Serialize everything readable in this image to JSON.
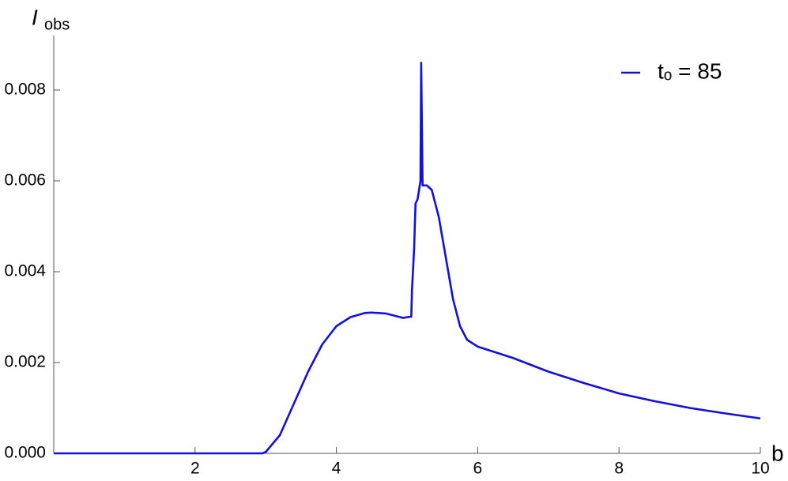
{
  "chart_data": {
    "type": "line",
    "ylabel": "I",
    "ylabel_sub": "obs",
    "xlabel": "b",
    "x": [
      0,
      1,
      2,
      2.95,
      3.0,
      3.2,
      3.4,
      3.6,
      3.8,
      4.0,
      4.2,
      4.4,
      4.5,
      4.7,
      4.9,
      4.95,
      5.0,
      5.06,
      5.07,
      5.1,
      5.12,
      5.15,
      5.19,
      5.2,
      5.22,
      5.28,
      5.35,
      5.45,
      5.55,
      5.65,
      5.75,
      5.85,
      6.0,
      6.5,
      7.0,
      7.5,
      8.0,
      8.5,
      9.0,
      9.5,
      10
    ],
    "series": [
      {
        "name": "tₒ = 85",
        "color": "#1010e6",
        "values": [
          0,
          0,
          0,
          0,
          3e-05,
          0.0004,
          0.0011,
          0.0018,
          0.0024,
          0.0028,
          0.003,
          0.00309,
          0.0031,
          0.00308,
          0.003,
          0.00298,
          0.003,
          0.00301,
          0.0036,
          0.0045,
          0.0055,
          0.0056,
          0.006,
          0.0086,
          0.0059,
          0.0059,
          0.0058,
          0.0052,
          0.0043,
          0.0034,
          0.0028,
          0.0025,
          0.00235,
          0.0021,
          0.0018,
          0.00155,
          0.00132,
          0.00115,
          0.001,
          0.00088,
          0.00077
        ]
      }
    ],
    "xlim": [
      0,
      10
    ],
    "ylim": [
      0,
      0.0092
    ],
    "xticks": [
      2,
      4,
      6,
      8,
      10
    ],
    "yticks": [
      {
        "value": 0,
        "label": "0.000"
      },
      {
        "value": 0.002,
        "label": "0.002"
      },
      {
        "value": 0.004,
        "label": "0.004"
      },
      {
        "value": 0.006,
        "label": "0.006"
      },
      {
        "value": 0.008,
        "label": "0.008"
      }
    ],
    "legend": "top-right",
    "grid": false
  }
}
